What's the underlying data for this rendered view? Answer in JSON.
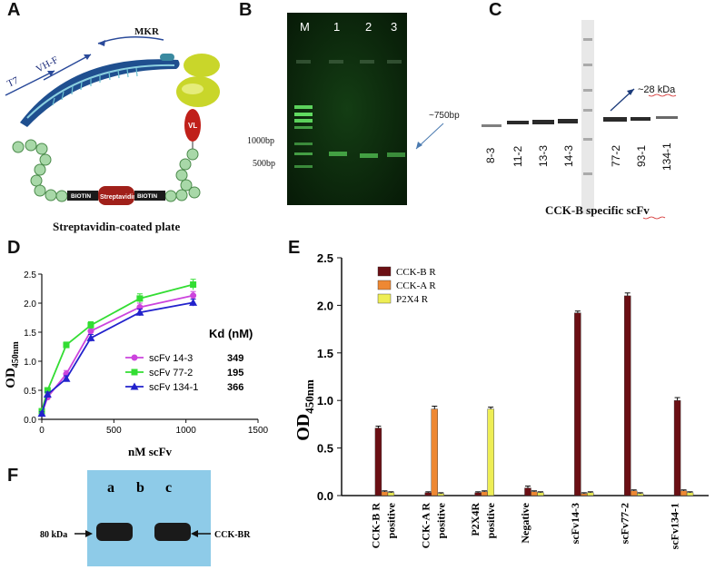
{
  "panels": {
    "A": {
      "letter": "A",
      "labels": {
        "mkr": "MKR",
        "t7": "T7",
        "vhf": "VH-F",
        "vl": "VL",
        "biotin_left": "BIOTIN",
        "streptavidin": "Streptavidin",
        "biotin_right": "BIOTIN"
      },
      "caption": "Streptavidin-coated plate"
    },
    "B": {
      "letter": "B",
      "lanes": [
        "M",
        "1",
        "2",
        "3"
      ],
      "markers": [
        "1000bp",
        "500bp"
      ],
      "band_label": "~750bp"
    },
    "C": {
      "letter": "C",
      "lanes": [
        "8-3",
        "11-2",
        "13-3",
        "14-3",
        "77-2",
        "93-1",
        "134-1"
      ],
      "kda_label": "~28 kDa",
      "caption": "CCK-B specific scFv"
    },
    "F": {
      "letter": "F",
      "lanes": [
        "a",
        "b",
        "c"
      ],
      "left_label": "80 kDa",
      "right_label": "CCK-BR"
    }
  },
  "chart_data": [
    {
      "panel": "D",
      "type": "line",
      "xlabel": "nM scFv",
      "ylabel": "OD450nm",
      "ylabel_main": "OD",
      "ylabel_sub": "450nm",
      "xlim": [
        0,
        1500
      ],
      "ylim": [
        0,
        2.5
      ],
      "xticks": [
        0,
        500,
        1000,
        1500
      ],
      "yticks": [
        0,
        0.5,
        1.0,
        1.5,
        2.0,
        2.5
      ],
      "ytick_labels": [
        "0.0",
        "0.5",
        "1.0",
        "1.5",
        "2.0",
        "2.5"
      ],
      "legend_title": "Kd (nM)",
      "legend_position": "right",
      "series": [
        {
          "name": "scFv 14-3",
          "kd": "349",
          "color": "#cc44dd",
          "marker": "circle",
          "x": [
            0,
            40,
            170,
            340,
            680,
            1050
          ],
          "y": [
            0.1,
            0.38,
            0.78,
            1.52,
            1.93,
            2.13
          ],
          "err": [
            0.03,
            0.04,
            0.06,
            0.06,
            0.07,
            0.07
          ]
        },
        {
          "name": "scFv 77-2",
          "kd": "195",
          "color": "#33dd33",
          "marker": "square",
          "x": [
            0,
            40,
            170,
            340,
            680,
            1050
          ],
          "y": [
            0.14,
            0.5,
            1.28,
            1.62,
            2.08,
            2.32
          ],
          "err": [
            0.03,
            0.04,
            0.05,
            0.06,
            0.08,
            0.09
          ]
        },
        {
          "name": "scFv 134-1",
          "kd": "366",
          "color": "#2222cc",
          "marker": "triangle",
          "x": [
            0,
            40,
            170,
            340,
            680,
            1050
          ],
          "y": [
            0.1,
            0.43,
            0.7,
            1.4,
            1.84,
            2.01
          ],
          "err": [
            0.03,
            0.04,
            0.05,
            0.06,
            0.06,
            0.06
          ]
        }
      ]
    },
    {
      "panel": "E",
      "type": "bar",
      "ylabel": "OD450nm",
      "ylabel_main": "OD",
      "ylabel_sub": "450nm",
      "ylim": [
        0,
        2.5
      ],
      "yticks": [
        0,
        0.5,
        1.0,
        1.5,
        2.0,
        2.5
      ],
      "ytick_labels": [
        "0.0",
        "0.5",
        "1.0",
        "1.5",
        "2.0",
        "2.5"
      ],
      "legend_position": "top-left",
      "categories": [
        [
          "CCK-B R",
          "positive"
        ],
        [
          "CCK-A R",
          "positive"
        ],
        [
          "P2X4R",
          "positive"
        ],
        [
          "Negative"
        ],
        [
          "scFv14-3"
        ],
        [
          "scFv77-2"
        ],
        [
          "scFv134-1"
        ]
      ],
      "series": [
        {
          "name": "CCK-B R",
          "color": "#6b0f14",
          "values": [
            0.71,
            0.03,
            0.03,
            0.08,
            1.92,
            2.1,
            1.0
          ],
          "err": [
            0.02,
            0.01,
            0.01,
            0.02,
            0.02,
            0.03,
            0.03
          ]
        },
        {
          "name": "CCK-A R",
          "color": "#ee8833",
          "values": [
            0.04,
            0.91,
            0.04,
            0.04,
            0.02,
            0.05,
            0.05
          ],
          "err": [
            0.01,
            0.03,
            0.01,
            0.01,
            0.01,
            0.01,
            0.01
          ]
        },
        {
          "name": "P2X4 R",
          "color": "#eeee55",
          "values": [
            0.03,
            0.02,
            0.91,
            0.03,
            0.03,
            0.02,
            0.03
          ],
          "err": [
            0.01,
            0.01,
            0.02,
            0.01,
            0.01,
            0.01,
            0.01
          ]
        }
      ]
    }
  ]
}
